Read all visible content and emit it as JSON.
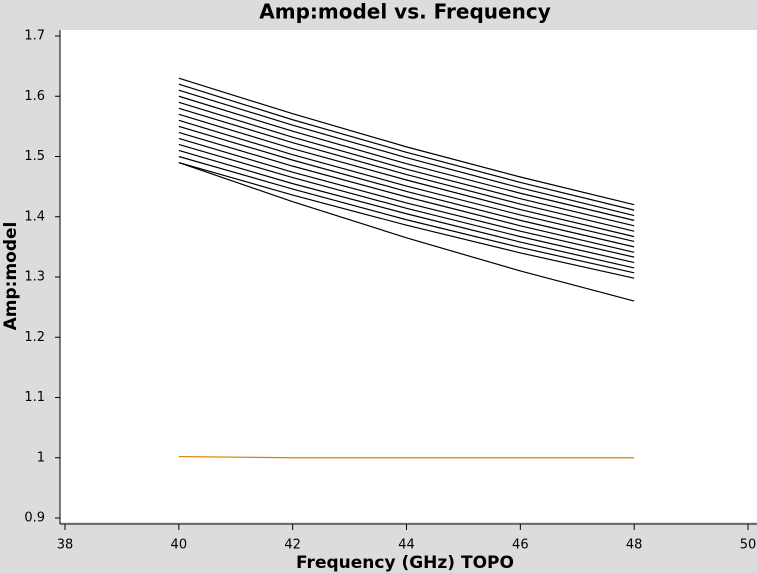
{
  "chart_data": {
    "type": "line",
    "title": "Amp:model vs. Frequency",
    "xlabel": "Frequency (GHz) TOPO",
    "ylabel": "Amp:model",
    "x": [
      40,
      42,
      44,
      46,
      48
    ],
    "series": [
      {
        "color": "#000000",
        "values": [
          1.63,
          1.571,
          1.516,
          1.466,
          1.42
        ]
      },
      {
        "color": "#000000",
        "values": [
          1.62,
          1.561,
          1.507,
          1.457,
          1.411
        ]
      },
      {
        "color": "#000000",
        "values": [
          1.61,
          1.552,
          1.498,
          1.448,
          1.402
        ]
      },
      {
        "color": "#000000",
        "values": [
          1.6,
          1.542,
          1.488,
          1.439,
          1.394
        ]
      },
      {
        "color": "#000000",
        "values": [
          1.59,
          1.532,
          1.479,
          1.43,
          1.385
        ]
      },
      {
        "color": "#000000",
        "values": [
          1.58,
          1.523,
          1.47,
          1.421,
          1.376
        ]
      },
      {
        "color": "#000000",
        "values": [
          1.57,
          1.513,
          1.461,
          1.412,
          1.367
        ]
      },
      {
        "color": "#000000",
        "values": [
          1.56,
          1.503,
          1.451,
          1.403,
          1.359
        ]
      },
      {
        "color": "#000000",
        "values": [
          1.55,
          1.494,
          1.442,
          1.394,
          1.35
        ]
      },
      {
        "color": "#000000",
        "values": [
          1.54,
          1.484,
          1.433,
          1.385,
          1.341
        ]
      },
      {
        "color": "#000000",
        "values": [
          1.53,
          1.474,
          1.423,
          1.376,
          1.333
        ]
      },
      {
        "color": "#000000",
        "values": [
          1.52,
          1.465,
          1.414,
          1.367,
          1.324
        ]
      },
      {
        "color": "#000000",
        "values": [
          1.51,
          1.455,
          1.405,
          1.358,
          1.315
        ]
      },
      {
        "color": "#000000",
        "values": [
          1.5,
          1.446,
          1.395,
          1.349,
          1.307
        ]
      },
      {
        "color": "#000000",
        "values": [
          1.49,
          1.436,
          1.386,
          1.34,
          1.298
        ]
      },
      {
        "color": "#000000",
        "values": [
          1.49,
          1.425,
          1.365,
          1.31,
          1.26
        ]
      },
      {
        "color": "#e08000",
        "values": [
          1.002,
          1.0,
          1.0,
          1.0,
          1.0
        ]
      }
    ],
    "xlim": [
      38,
      50
    ],
    "xticks": [
      38,
      40,
      42,
      44,
      46,
      48,
      50
    ],
    "ylim": [
      0.9,
      1.7
    ],
    "yticks": [
      0.9,
      1,
      1.1,
      1.2,
      1.3,
      1.4,
      1.5,
      1.6,
      1.7
    ]
  }
}
